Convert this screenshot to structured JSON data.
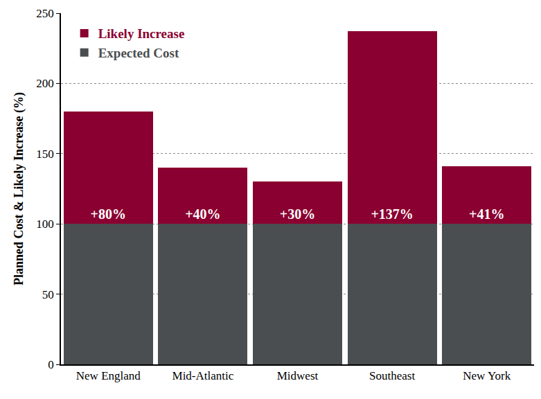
{
  "chart_data": {
    "type": "bar",
    "stacked": true,
    "y_label": "Planned Cost & Likely Increase (%)",
    "categories": [
      "New England",
      "Mid-Atlantic",
      "Midwest",
      "Southeast",
      "New York"
    ],
    "series": [
      {
        "name": "Expected Cost",
        "color": "#4b4e50",
        "values": [
          100,
          100,
          100,
          100,
          100
        ]
      },
      {
        "name": "Likely Increase",
        "color": "#8a0030",
        "values": [
          80,
          40,
          30,
          137,
          41
        ],
        "value_labels": [
          "+80%",
          "+40%",
          "+30%",
          "+137%",
          "+41%"
        ]
      }
    ],
    "ylim": [
      0,
      250
    ],
    "yticks": [
      0,
      50,
      100,
      150,
      200,
      250
    ],
    "grid": true,
    "legend": "top-left",
    "data_labels": true
  }
}
